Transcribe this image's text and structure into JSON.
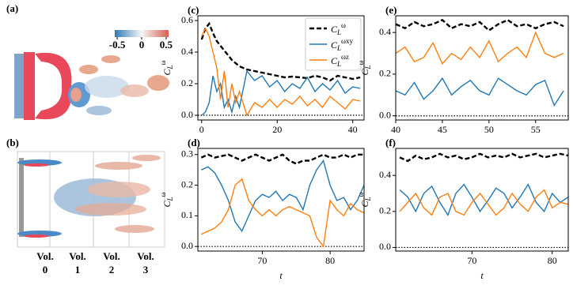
{
  "figure": {
    "panel_a_label": "(a)",
    "panel_b_label": "(b)",
    "colorbar": {
      "lim": [
        -0.55,
        0.55
      ],
      "ticks": [
        -0.5,
        0,
        0.5
      ],
      "colors": [
        "#2c7bb6",
        "#f7f7f7",
        "#d6604d"
      ]
    },
    "volumes": [
      [
        "Vol.",
        "0"
      ],
      [
        "Vol.",
        "1"
      ],
      [
        "Vol.",
        "2"
      ],
      [
        "Vol.",
        "3"
      ]
    ]
  },
  "chart_data": [
    {
      "type": "line",
      "panel_label": "(c)",
      "ylabel": "CLω",
      "legend": "upper right",
      "zero_line": true,
      "x": [
        0,
        1,
        2,
        3,
        4,
        5,
        6,
        7,
        8,
        9,
        10,
        12,
        14,
        16,
        18,
        20,
        22,
        24,
        26,
        28,
        30,
        32,
        34,
        36,
        38,
        40,
        42
      ],
      "xlim": [
        -1,
        43
      ],
      "xticks": [
        0,
        20,
        40
      ],
      "ylim": [
        -0.03,
        0.63
      ],
      "yticks": [
        {
          "value": 0,
          "label": "0.0"
        },
        0.2,
        0.4,
        0.6
      ],
      "series": [
        {
          "name": "CLω",
          "color": "#000000",
          "style": "dashed",
          "values": [
            0.48,
            0.55,
            0.58,
            0.52,
            0.47,
            0.44,
            0.41,
            0.38,
            0.35,
            0.33,
            0.31,
            0.29,
            0.28,
            0.27,
            0.26,
            0.25,
            0.24,
            0.245,
            0.24,
            0.235,
            0.25,
            0.24,
            0.22,
            0.25,
            0.24,
            0.23,
            0.24
          ]
        },
        {
          "name": "CLωxy",
          "color": "#1f77b4",
          "style": "solid",
          "values": [
            0.0,
            0.02,
            0.08,
            0.25,
            0.15,
            0.2,
            0.05,
            0.1,
            0.02,
            0.12,
            0.05,
            0.28,
            0.22,
            0.25,
            0.18,
            0.22,
            0.15,
            0.2,
            0.17,
            0.24,
            0.15,
            0.2,
            0.16,
            0.22,
            0.14,
            0.18,
            0.17
          ]
        },
        {
          "name": "CLωz",
          "color": "#ff7f0e",
          "style": "solid",
          "values": [
            0.5,
            0.55,
            0.5,
            0.4,
            0.3,
            0.1,
            0.28,
            0.05,
            0.2,
            0.08,
            0.15,
            0.0,
            0.08,
            0.05,
            0.1,
            0.05,
            0.1,
            0.07,
            0.12,
            0.06,
            0.1,
            0.05,
            0.12,
            0.08,
            0.04,
            0.1,
            0.09
          ]
        }
      ]
    },
    {
      "type": "line",
      "panel_label": "(d)",
      "ylabel": "CLω",
      "xlabel": "t",
      "zero_line": true,
      "x": [
        61,
        62,
        63,
        64,
        65,
        66,
        67,
        68,
        69,
        70,
        71,
        72,
        73,
        74,
        75,
        76,
        77,
        78,
        79,
        80,
        81,
        82,
        83,
        84,
        85
      ],
      "xlim": [
        60.5,
        85
      ],
      "xticks": [
        70,
        80
      ],
      "ylim": [
        -0.015,
        0.32
      ],
      "yticks": [
        {
          "value": 0,
          "label": "0.0"
        },
        0.1,
        0.2,
        0.3
      ],
      "series": [
        {
          "color": "#000000",
          "style": "dashed",
          "values": [
            0.29,
            0.3,
            0.29,
            0.295,
            0.3,
            0.29,
            0.28,
            0.29,
            0.3,
            0.29,
            0.28,
            0.29,
            0.3,
            0.28,
            0.27,
            0.28,
            0.28,
            0.29,
            0.3,
            0.29,
            0.29,
            0.3,
            0.29,
            0.3,
            0.3
          ]
        },
        {
          "color": "#1f77b4",
          "style": "solid",
          "values": [
            0.25,
            0.26,
            0.24,
            0.2,
            0.15,
            0.08,
            0.05,
            0.1,
            0.15,
            0.17,
            0.16,
            0.18,
            0.15,
            0.17,
            0.16,
            0.12,
            0.2,
            0.25,
            0.28,
            0.2,
            0.15,
            0.16,
            0.12,
            0.15,
            0.2
          ]
        },
        {
          "color": "#ff7f0e",
          "style": "solid",
          "values": [
            0.04,
            0.05,
            0.06,
            0.08,
            0.12,
            0.2,
            0.22,
            0.15,
            0.12,
            0.1,
            0.12,
            0.1,
            0.12,
            0.13,
            0.12,
            0.11,
            0.1,
            0.03,
            0.0,
            0.15,
            0.12,
            0.1,
            0.14,
            0.12,
            0.11
          ]
        }
      ]
    },
    {
      "type": "line",
      "panel_label": "(e)",
      "ylabel": "CLω",
      "zero_line": true,
      "x": [
        40,
        41,
        42,
        43,
        44,
        45,
        46,
        47,
        48,
        49,
        50,
        51,
        52,
        53,
        54,
        55,
        56,
        57,
        58
      ],
      "xlim": [
        40,
        58.5
      ],
      "xticks": [
        40,
        45,
        50,
        55
      ],
      "ylim": [
        -0.02,
        0.48
      ],
      "yticks": [
        {
          "value": 0,
          "label": "0.0"
        },
        0.2,
        0.4
      ],
      "series": [
        {
          "color": "#000000",
          "style": "dashed",
          "values": [
            0.44,
            0.42,
            0.45,
            0.43,
            0.44,
            0.46,
            0.42,
            0.44,
            0.43,
            0.45,
            0.41,
            0.44,
            0.46,
            0.43,
            0.44,
            0.42,
            0.44,
            0.45,
            0.43
          ]
        },
        {
          "color": "#ff7f0e",
          "style": "solid",
          "values": [
            0.3,
            0.33,
            0.26,
            0.28,
            0.35,
            0.25,
            0.3,
            0.27,
            0.33,
            0.28,
            0.36,
            0.26,
            0.3,
            0.33,
            0.28,
            0.4,
            0.3,
            0.28,
            0.3
          ]
        },
        {
          "color": "#1f77b4",
          "style": "solid",
          "values": [
            0.12,
            0.1,
            0.16,
            0.08,
            0.12,
            0.18,
            0.1,
            0.14,
            0.17,
            0.12,
            0.1,
            0.18,
            0.15,
            0.12,
            0.1,
            0.15,
            0.17,
            0.05,
            0.12
          ]
        }
      ]
    },
    {
      "type": "line",
      "panel_label": "(f)",
      "ylabel": "CLω",
      "xlabel": "t",
      "zero_line": true,
      "x": [
        61,
        62,
        63,
        64,
        65,
        66,
        67,
        68,
        69,
        70,
        71,
        72,
        73,
        74,
        75,
        76,
        77,
        78,
        79,
        80,
        81,
        82
      ],
      "xlim": [
        60.5,
        82
      ],
      "xticks": [
        70,
        80
      ],
      "ylim": [
        -0.02,
        0.55
      ],
      "yticks": [
        {
          "value": 0,
          "label": "0.0"
        },
        0.2,
        0.4
      ],
      "series": [
        {
          "color": "#000000",
          "style": "dashed",
          "values": [
            0.5,
            0.48,
            0.51,
            0.49,
            0.5,
            0.52,
            0.5,
            0.51,
            0.49,
            0.5,
            0.52,
            0.5,
            0.51,
            0.5,
            0.52,
            0.5,
            0.51,
            0.52,
            0.5,
            0.51,
            0.52,
            0.51
          ]
        },
        {
          "color": "#1f77b4",
          "style": "solid",
          "values": [
            0.32,
            0.28,
            0.2,
            0.3,
            0.34,
            0.25,
            0.18,
            0.3,
            0.35,
            0.28,
            0.2,
            0.26,
            0.33,
            0.3,
            0.22,
            0.28,
            0.35,
            0.25,
            0.2,
            0.3,
            0.25,
            0.28
          ]
        },
        {
          "color": "#ff7f0e",
          "style": "solid",
          "values": [
            0.2,
            0.25,
            0.3,
            0.22,
            0.18,
            0.28,
            0.3,
            0.2,
            0.18,
            0.25,
            0.3,
            0.24,
            0.18,
            0.22,
            0.3,
            0.24,
            0.2,
            0.28,
            0.32,
            0.22,
            0.25,
            0.24
          ]
        }
      ]
    }
  ]
}
